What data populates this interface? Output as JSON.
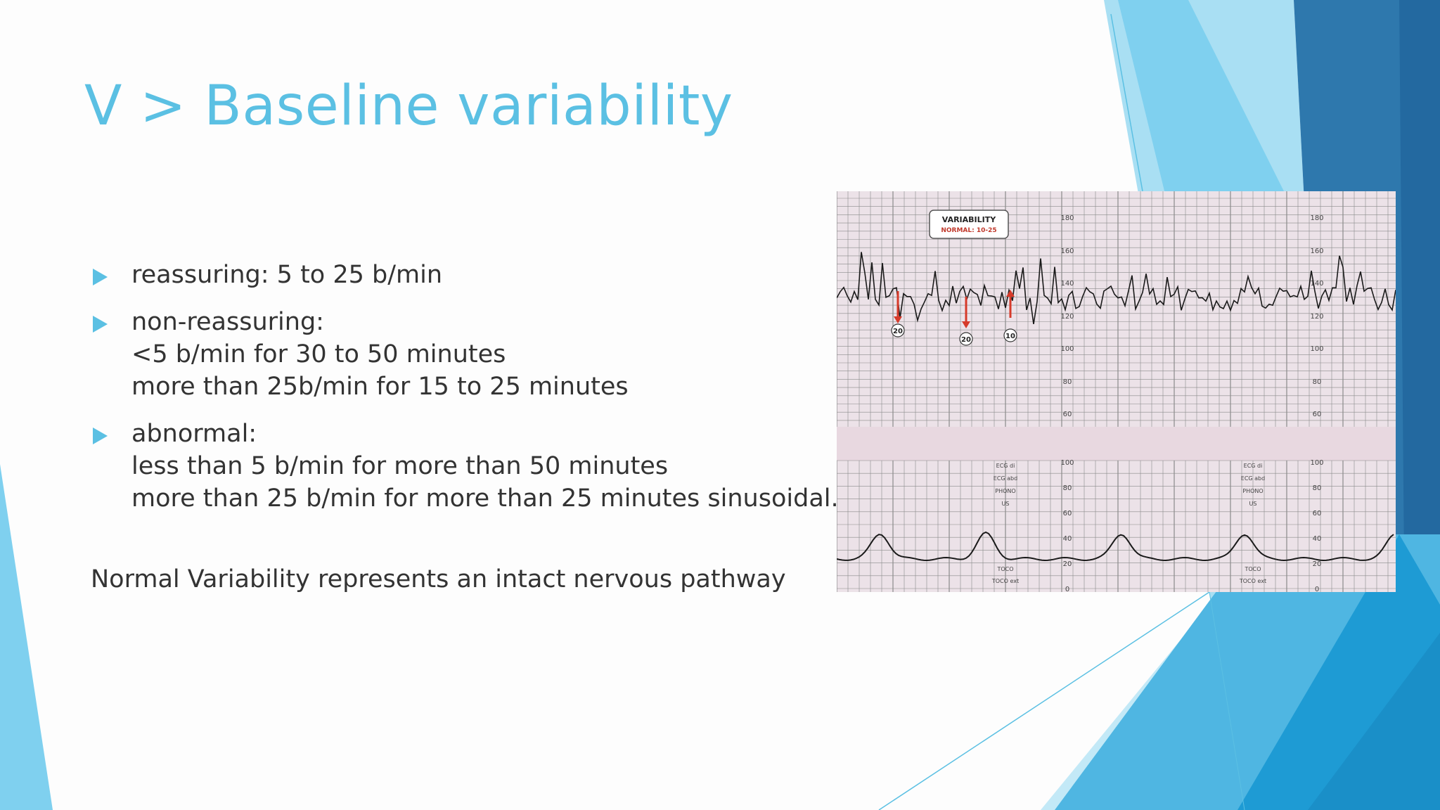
{
  "slide": {
    "title": "V > Baseline variability",
    "bullets": [
      {
        "lines": [
          "reassuring: 5 to 25 b/min"
        ]
      },
      {
        "lines": [
          "non-reassuring:",
          "<5 b/min for 30 to 50 minutes",
          "more than 25b/min for 15 to 25 minutes"
        ]
      },
      {
        "lines": [
          "abnormal:",
          "less than 5 b/min for more than 50 minutes",
          "more than 25 b/min for more than 25 minutes sinusoidal."
        ]
      }
    ],
    "note": "Normal Variability represents an intact nervous pathway"
  },
  "colors": {
    "accent": "#5bc0e3",
    "text": "#333333",
    "dark_blue": "#2a6fa3",
    "mid_blue": "#1e9bd4",
    "light_blue": "#7fd0ef",
    "grid_bg": "#ece2e8",
    "grid_line": "#8a8a8a",
    "trace": "#1a1a1a",
    "marker_red": "#d63a2a"
  },
  "ctg": {
    "box_title": "VARIABILITY",
    "box_sub": "NORMAL: 10-25",
    "fhr_scale": [
      "180",
      "160",
      "140",
      "120",
      "100",
      "80",
      "60"
    ],
    "toco_scale": [
      "100",
      "80",
      "60",
      "40",
      "20",
      "0"
    ],
    "markers": [
      "20",
      "20",
      "10"
    ],
    "channel_labels": [
      "ECG di",
      "ECG abd",
      "PHONO",
      "US",
      "TOCO",
      "TOCO ext"
    ]
  }
}
